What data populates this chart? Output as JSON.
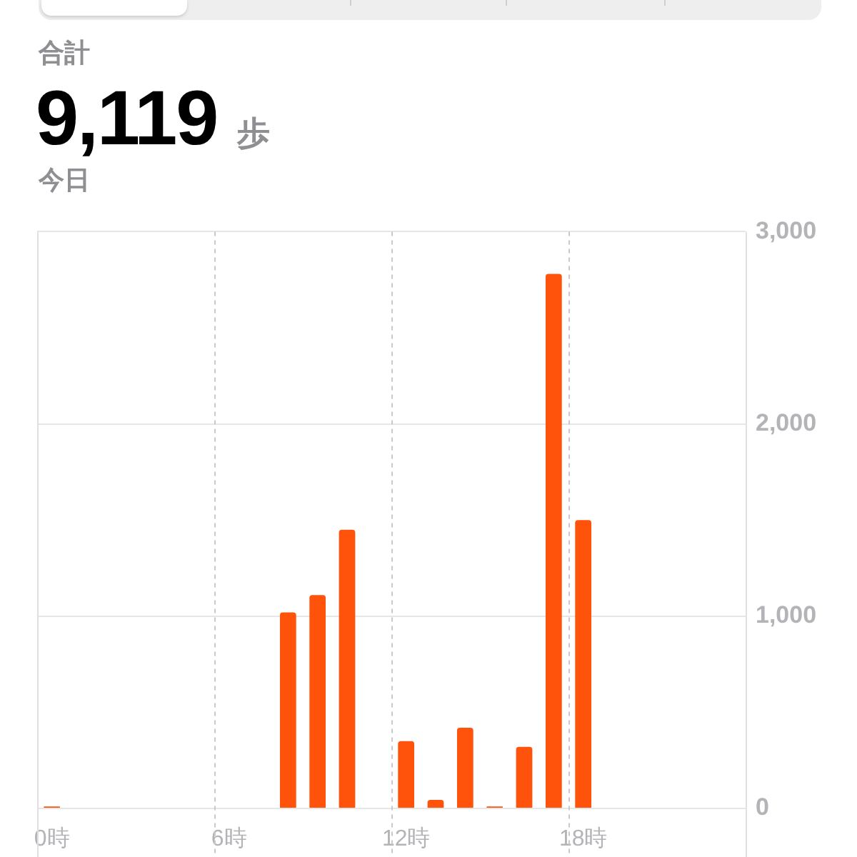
{
  "chart_data": {
    "type": "bar",
    "subtitle": "合計",
    "title": "9,119 歩",
    "annotations": [
      "今日"
    ],
    "categories": [
      "0時",
      null,
      null,
      null,
      null,
      null,
      "6時",
      null,
      null,
      null,
      null,
      null,
      "12時",
      null,
      null,
      null,
      null,
      null,
      "18時",
      null,
      null,
      null,
      null,
      null
    ],
    "values": [
      10,
      null,
      null,
      null,
      null,
      null,
      null,
      null,
      1020,
      1110,
      1450,
      null,
      350,
      45,
      420,
      10,
      320,
      2780,
      1500,
      null,
      null,
      null,
      null,
      null
    ],
    "color": "#ff520a",
    "ylim": [
      0,
      3000
    ],
    "yticks": [
      0,
      {
        "value": 1000,
        "label": "1,000"
      },
      {
        "value": 2000,
        "label": "2,000"
      },
      {
        "value": 3000,
        "label": "3,000"
      }
    ],
    "grid": true
  }
}
